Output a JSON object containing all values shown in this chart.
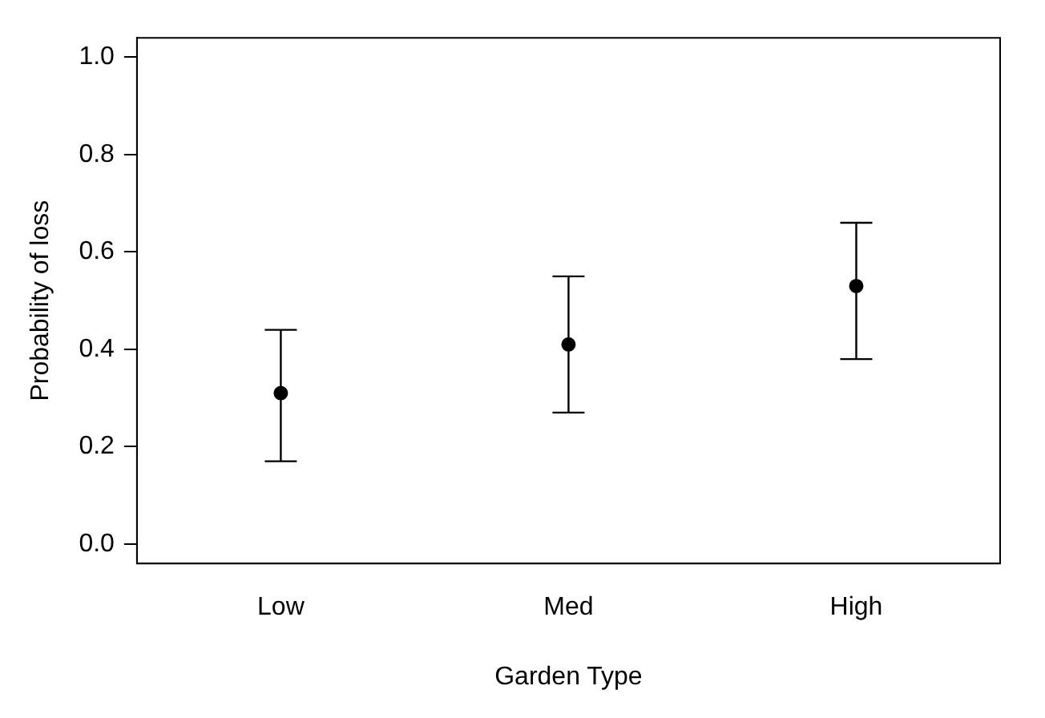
{
  "chart_data": {
    "type": "scatter",
    "xlabel": "Garden Type",
    "ylabel": "Probability of loss",
    "categories": [
      "Low",
      "Med",
      "High"
    ],
    "values": [
      0.31,
      0.41,
      0.53
    ],
    "errors": [
      [
        0.17,
        0.44
      ],
      [
        0.27,
        0.55
      ],
      [
        0.38,
        0.66
      ]
    ],
    "color": "#000000",
    "marker": "circle",
    "grid": false,
    "legend": false,
    "ylim": [
      -0.04,
      1.04
    ],
    "yticks": [
      {
        "value": 0,
        "label": "0.0"
      },
      {
        "value": 0.2,
        "label": "0.2"
      },
      {
        "value": 0.4,
        "label": "0.4"
      },
      {
        "value": 0.6,
        "label": "0.6"
      },
      {
        "value": 0.8,
        "label": "0.8"
      },
      {
        "value": 1,
        "label": "1.0"
      }
    ]
  }
}
